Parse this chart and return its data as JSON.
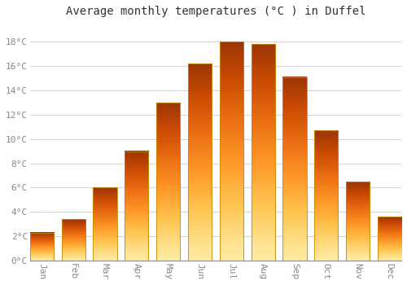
{
  "title": "Average monthly temperatures (°C ) in Duffel",
  "months": [
    "Jan",
    "Feb",
    "Mar",
    "Apr",
    "May",
    "Jun",
    "Jul",
    "Aug",
    "Sep",
    "Oct",
    "Nov",
    "Dec"
  ],
  "temperatures": [
    2.3,
    3.4,
    6.0,
    9.0,
    13.0,
    16.2,
    18.0,
    17.8,
    15.1,
    10.7,
    6.5,
    3.6
  ],
  "bar_color_top": "#FFA500",
  "bar_color_bottom": "#FFD080",
  "bar_edge_color": "#CC8800",
  "ylim": [
    0,
    19.5
  ],
  "yticks": [
    0,
    2,
    4,
    6,
    8,
    10,
    12,
    14,
    16,
    18
  ],
  "background_color": "#FFFFFF",
  "grid_color": "#CCCCCC",
  "title_fontsize": 10,
  "tick_fontsize": 8,
  "title_color": "#333333",
  "tick_color": "#888888",
  "bar_width": 0.75
}
